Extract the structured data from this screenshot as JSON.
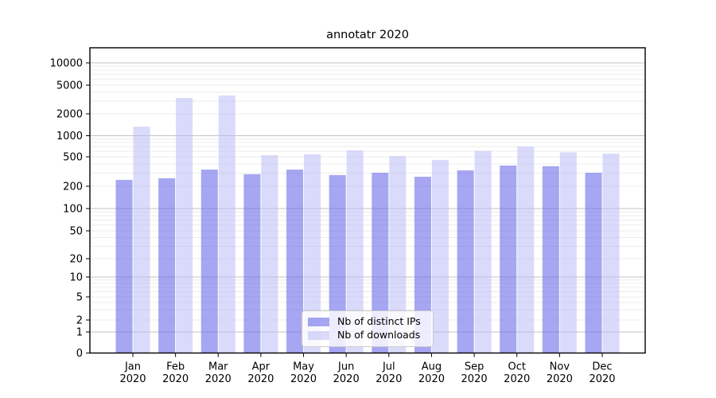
{
  "chart_data": {
    "type": "bar",
    "title": "annotatr 2020",
    "categories": [
      "Jan",
      "Feb",
      "Mar",
      "Apr",
      "May",
      "Jun",
      "Jul",
      "Aug",
      "Sep",
      "Oct",
      "Nov",
      "Dec"
    ],
    "year": "2020",
    "series": [
      {
        "name": "Nb of distinct IPs",
        "color": "#6666e8",
        "opacity": 0.58,
        "values": [
          244,
          256,
          336,
          291,
          336,
          283,
          305,
          269,
          328,
          381,
          373,
          305
        ]
      },
      {
        "name": "Nb of downloads",
        "color": "#b5b5f5",
        "opacity": 0.5,
        "values": [
          1330,
          3330,
          3590,
          527,
          545,
          616,
          512,
          453,
          605,
          700,
          580,
          555
        ]
      }
    ],
    "yscale": "symlog",
    "ylim": [
      0,
      16000
    ],
    "y_ticks": [
      10000,
      5000,
      2000,
      1000,
      500,
      200,
      100,
      50,
      20,
      10,
      5,
      2,
      1,
      0
    ],
    "grid": true,
    "grid_major_color": "#c3c3c3",
    "grid_minor_color": "#ececec",
    "legend_position": "lower center"
  }
}
